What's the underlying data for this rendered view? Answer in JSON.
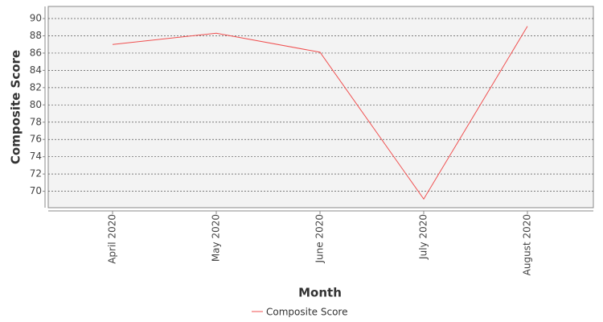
{
  "chart_data": {
    "type": "line",
    "x_label": "Month",
    "y_label": "Composite Score",
    "categories": [
      "April 2020",
      "May 2020",
      "June 2020",
      "July 2020",
      "August 2020"
    ],
    "series": [
      {
        "name": "Composite Score",
        "color": "#f05050",
        "values": [
          87.0,
          88.3,
          86.1,
          69.1,
          89.1
        ]
      }
    ],
    "ylim": [
      68.1,
      91.4
    ],
    "yticks": [
      70,
      72,
      74,
      76,
      78,
      80,
      82,
      84,
      86,
      88,
      90
    ],
    "grid": true
  }
}
